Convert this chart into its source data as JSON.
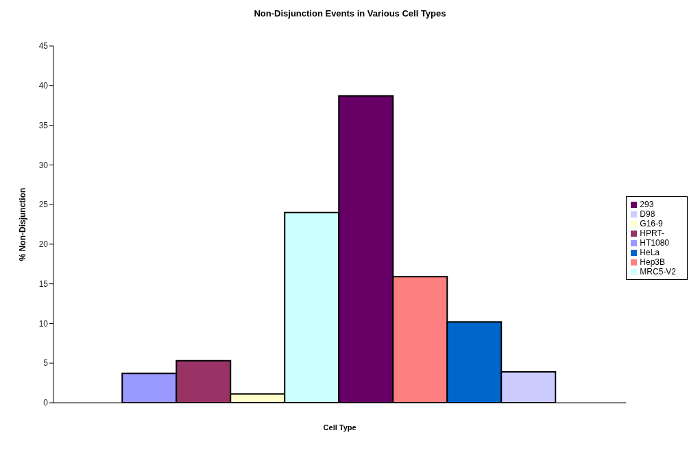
{
  "chart_data": {
    "type": "bar",
    "title": "Non-Disjunction Events in Various Cell Types",
    "xlabel": "Cell Type",
    "ylabel": "% Non-Disjunction",
    "categories": [
      null
    ],
    "series": [
      {
        "name": "HT1080",
        "color": "#9999ff",
        "values": [
          3.7
        ]
      },
      {
        "name": "HPRT-",
        "color": "#993366",
        "values": [
          5.3
        ]
      },
      {
        "name": "G16-9",
        "color": "#ffffcc",
        "values": [
          1.1
        ]
      },
      {
        "name": "MRC5-V2",
        "color": "#ccffff",
        "values": [
          24
        ]
      },
      {
        "name": "293",
        "color": "#660066",
        "values": [
          38.7
        ]
      },
      {
        "name": "Hep3B",
        "color": "#ff8080",
        "values": [
          15.9
        ]
      },
      {
        "name": "HeLa",
        "color": "#0066cc",
        "values": [
          10.2
        ]
      },
      {
        "name": "D98",
        "color": "#ccccff",
        "values": [
          3.9
        ]
      }
    ],
    "ylim": [
      0,
      45
    ],
    "yticks": [
      0,
      5,
      10,
      15,
      20,
      25,
      30,
      35,
      40,
      45
    ],
    "grid": false,
    "legend": "right"
  }
}
